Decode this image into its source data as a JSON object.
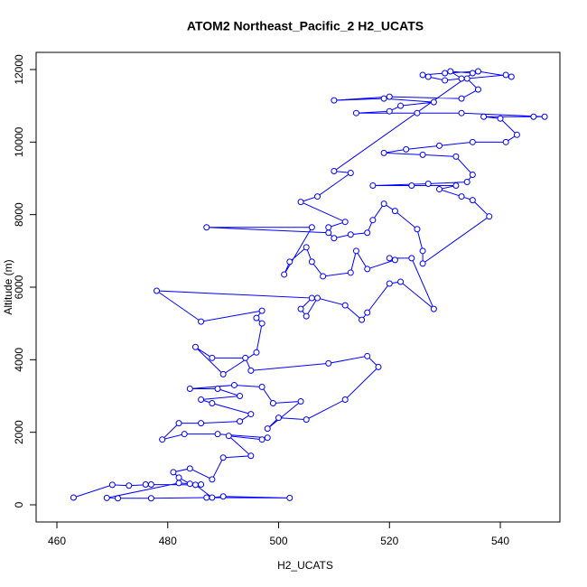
{
  "chart_data": {
    "type": "line",
    "title": "ATOM2 Northeast_Pacific_2 H2_UCATS",
    "x_label": "H2_UCATS",
    "y_label": "Altitude (m)",
    "markers": true,
    "color": "#0000ff",
    "xlim": [
      456.25,
      550.75
    ],
    "xticks": [
      460,
      480,
      500,
      520,
      540
    ],
    "ylim": [
      -473,
      12473
    ],
    "yticks": [
      0,
      2000,
      4000,
      6000,
      8000,
      10000,
      12000
    ],
    "series": [
      {
        "name": "H2_UCATS",
        "x": [
          463,
          470,
          473,
          477,
          476,
          485,
          488,
          490,
          502,
          487,
          477,
          471,
          469,
          482,
          486,
          484,
          482,
          481,
          484,
          488,
          490,
          495,
          491,
          497,
          498,
          489,
          483,
          479,
          482,
          486,
          493,
          495,
          488,
          486,
          493,
          489,
          484,
          492,
          497,
          499,
          504,
          498,
          500,
          505,
          512,
          518,
          516,
          509,
          495,
          494,
          488,
          485,
          490,
          496,
          497,
          496,
          497,
          486,
          478,
          506,
          504,
          505,
          507,
          512,
          515,
          516,
          520,
          522,
          528,
          524,
          520,
          521,
          516,
          514,
          513,
          508,
          506,
          505,
          502,
          501,
          506,
          487,
          509,
          510,
          513,
          516,
          517,
          519,
          521,
          525,
          526,
          526,
          538,
          535,
          533,
          529,
          532,
          524,
          517,
          527,
          534,
          535,
          532,
          526,
          519,
          523,
          529,
          535,
          541,
          543,
          540,
          537,
          546,
          548,
          533,
          525,
          514,
          520,
          522,
          528,
          519,
          510,
          520,
          533,
          536,
          534,
          541,
          542,
          536,
          530,
          526,
          527,
          530,
          533,
          531,
          535,
          510,
          513,
          507,
          504,
          512,
          509
        ],
        "values": [
          200,
          550,
          530,
          560,
          560,
          550,
          200,
          230,
          190,
          200,
          180,
          180,
          190,
          600,
          560,
          580,
          750,
          900,
          1000,
          700,
          1300,
          1350,
          1900,
          1800,
          1850,
          1950,
          1950,
          1800,
          2250,
          2250,
          2300,
          2500,
          2800,
          2900,
          3000,
          3200,
          3200,
          3300,
          3250,
          2800,
          2850,
          2100,
          2400,
          2350,
          2900,
          3800,
          4100,
          3900,
          3700,
          4050,
          4050,
          4350,
          3600,
          4200,
          5000,
          5150,
          5350,
          5050,
          5900,
          5700,
          5400,
          5200,
          5700,
          5500,
          5100,
          5300,
          6100,
          6150,
          5400,
          6800,
          6800,
          6750,
          6500,
          7000,
          6400,
          6300,
          6700,
          7100,
          6700,
          6350,
          7650,
          7650,
          7500,
          7350,
          7450,
          7500,
          7850,
          8300,
          8100,
          7600,
          7000,
          6650,
          7950,
          8400,
          8500,
          8700,
          8800,
          8800,
          8800,
          8850,
          8900,
          9100,
          9600,
          9650,
          9700,
          9800,
          9900,
          10000,
          10000,
          10200,
          10650,
          10700,
          10700,
          10700,
          10800,
          10800,
          10800,
          10850,
          11000,
          11100,
          11200,
          11150,
          11250,
          11200,
          11450,
          11750,
          11850,
          11800,
          11950,
          11900,
          11850,
          11800,
          11700,
          11750,
          11950,
          11900,
          9200,
          9150,
          8500,
          8350,
          7800,
          7650
        ]
      }
    ]
  }
}
